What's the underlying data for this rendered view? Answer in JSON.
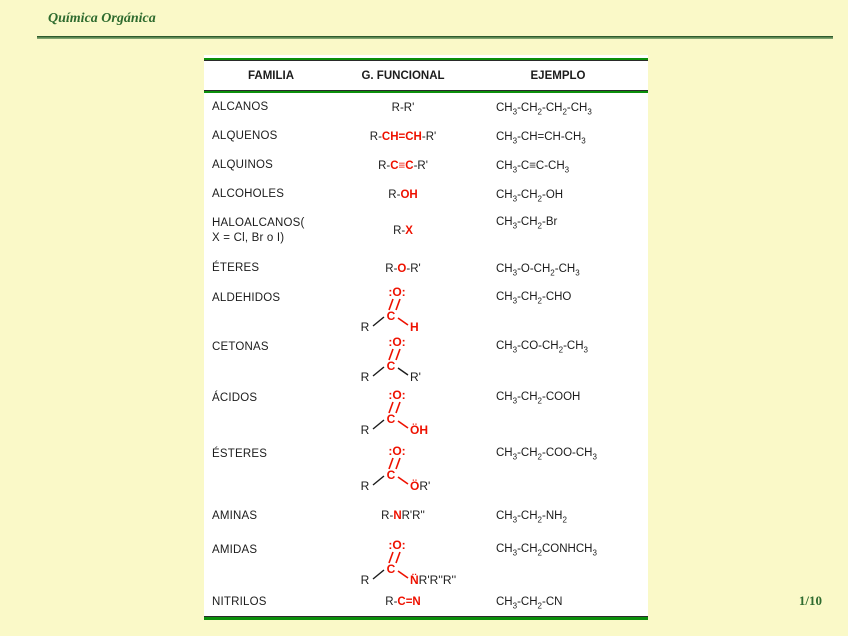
{
  "slide": {
    "title": "Química Orgánica",
    "page_number": "1/10",
    "colors": {
      "background": "#FAF9C8",
      "table_rule_green": "#0B8F0B",
      "heading_green": "#2E6B2E",
      "highlight_red": "#EE1100",
      "text_black": "#1C1C1C",
      "table_background": "#FFFFFF"
    }
  },
  "table": {
    "headers": [
      "FAMILIA",
      "G. FUNCIONAL",
      "EJEMPLO"
    ],
    "rows": [
      {
        "family": "ALCANOS",
        "h": 29,
        "functional": [
          {
            "t": "R-R'"
          }
        ],
        "example": "CH_3-CH_2-CH_2-CH_3"
      },
      {
        "family": "ALQUENOS",
        "h": 29,
        "functional": [
          {
            "t": "R-"
          },
          {
            "t": "CH=CH",
            "red": true
          },
          {
            "t": "-R'"
          }
        ],
        "example": "CH_3-CH=CH-CH_3"
      },
      {
        "family": "ALQUINOS",
        "h": 29,
        "functional": [
          {
            "t": "R-"
          },
          {
            "t": "C≡C",
            "red": true
          },
          {
            "t": "-R'"
          }
        ],
        "example": "CH_3-C≡C-CH_3"
      },
      {
        "family": "ALCOHOLES",
        "h": 29,
        "functional": [
          {
            "t": "R-"
          },
          {
            "t": "OH",
            "red": true
          }
        ],
        "example": "CH_3-CH_2-OH"
      },
      {
        "family": "HALOALCANOS(",
        "family2": "X = Cl, Br o I)",
        "h": 44,
        "functional": [
          {
            "t": "R-"
          },
          {
            "t": "X",
            "red": true
          }
        ],
        "example": "CH_3-CH_2-Br"
      },
      {
        "family": "ÉTERES",
        "h": 31,
        "functional": [
          {
            "t": "R-"
          },
          {
            "t": "O",
            "red": true
          },
          {
            "t": "-R'"
          }
        ],
        "example": "CH_3-O-CH_2-CH_3"
      },
      {
        "family": "ALDEHIDOS",
        "h": 49,
        "structure": {
          "top": ":O:",
          "carbon": "C",
          "left": "R",
          "bondRed": true,
          "right": [
            {
              "t": "H",
              "red": true
            }
          ]
        },
        "example": "CH_3-CH_2-CHO"
      },
      {
        "family": "CETONAS",
        "h": 51,
        "structure": {
          "top": ":O:",
          "carbon": "C",
          "left": "R",
          "bondRed": false,
          "right": [
            {
              "t": "R'"
            }
          ]
        },
        "example": "CH_3-CO-CH_2-CH_3"
      },
      {
        "family": "ÁCIDOS",
        "h": 56,
        "structure": {
          "top": ":O:",
          "carbon": "C",
          "left": "R",
          "bondRed": true,
          "right": [
            {
              "t": "ÖH",
              "red": true
            }
          ]
        },
        "example": "CH_3-CH_2-COOH"
      },
      {
        "family": "ÉSTERES",
        "h": 56,
        "structure": {
          "top": ":O:",
          "carbon": "C",
          "left": "R",
          "bondRed": true,
          "right": [
            {
              "t": "Ö",
              "red": true
            },
            {
              "t": "R'"
            }
          ]
        },
        "example": "CH_3-CH_2-COO-CH_3"
      },
      {
        "family": "AMINAS",
        "h": 40,
        "functional": [
          {
            "t": "R-"
          },
          {
            "t": "N",
            "red": true
          },
          {
            "t": "R'R''"
          }
        ],
        "example": "CH_3-CH_2-NH_2"
      },
      {
        "family": "AMIDAS",
        "h": 52,
        "structure": {
          "top": ":O:",
          "carbon": "C",
          "left": "R",
          "bondRed": true,
          "right": [
            {
              "t": "N̈",
              "red": true
            },
            {
              "t": "R'R''R''"
            }
          ]
        },
        "example": "CH_3-CH_2CONHCH_3"
      },
      {
        "family": "NITRILOS",
        "h": 28,
        "functional": [
          {
            "t": "R-"
          },
          {
            "t": "C=N",
            "red": true
          }
        ],
        "example": "CH_3-CH_2-CN"
      }
    ]
  }
}
